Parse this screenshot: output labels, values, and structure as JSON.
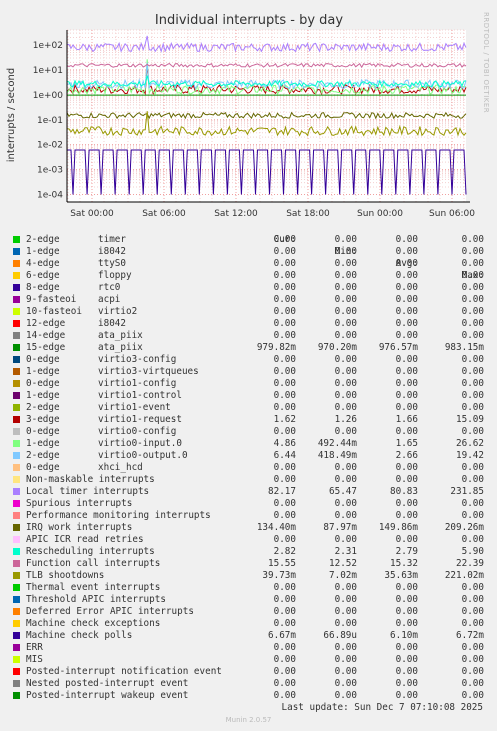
{
  "chart_data": {
    "type": "line",
    "title": "Individual interrupts - by day",
    "ylabel": "interrupts / second",
    "yscale": "log",
    "ylim": [
      5e-05,
      400
    ],
    "yticks": [
      "1e+02",
      "1e+01",
      "1e+00",
      "1e-01",
      "1e-02",
      "1e-03",
      "1e-04"
    ],
    "xticks": [
      "Sat 00:00",
      "Sat 06:00",
      "Sat 12:00",
      "Sat 18:00",
      "Sun 00:00",
      "Sun 06:00"
    ],
    "side_label": "RRDTOOL / TOBI OETIKER",
    "series": [
      {
        "label": "timer",
        "irq": "2-edge",
        "color": "#00cc00",
        "cur": "0.00",
        "min": "0.00",
        "avg": "0.00",
        "max": "0.00"
      },
      {
        "label": "i8042",
        "irq": "1-edge",
        "color": "#0066b3",
        "cur": "0.00",
        "min": "0.00",
        "avg": "0.00",
        "max": "0.00"
      },
      {
        "label": "ttyS0",
        "irq": "4-edge",
        "color": "#ff8000",
        "cur": "0.00",
        "min": "0.00",
        "avg": "0.00",
        "max": "0.00"
      },
      {
        "label": "floppy",
        "irq": "6-edge",
        "color": "#ffcc00",
        "cur": "0.00",
        "min": "0.00",
        "avg": "0.00",
        "max": "0.00"
      },
      {
        "label": "rtc0",
        "irq": "8-edge",
        "color": "#330099",
        "cur": "0.00",
        "min": "0.00",
        "avg": "0.00",
        "max": "0.00"
      },
      {
        "label": "acpi",
        "irq": "9-fasteoi",
        "color": "#990099",
        "cur": "0.00",
        "min": "0.00",
        "avg": "0.00",
        "max": "0.00"
      },
      {
        "label": "virtio2",
        "irq": "10-fasteoi",
        "color": "#ccff00",
        "cur": "0.00",
        "min": "0.00",
        "avg": "0.00",
        "max": "0.00"
      },
      {
        "label": "i8042",
        "irq": "12-edge",
        "color": "#ff0000",
        "cur": "0.00",
        "min": "0.00",
        "avg": "0.00",
        "max": "0.00"
      },
      {
        "label": "ata_piix",
        "irq": "14-edge",
        "color": "#808080",
        "cur": "0.00",
        "min": "0.00",
        "avg": "0.00",
        "max": "0.00"
      },
      {
        "label": "ata_piix",
        "irq": "15-edge",
        "color": "#008f00",
        "cur": "979.82m",
        "min": "970.20m",
        "avg": "976.57m",
        "max": "983.15m"
      },
      {
        "label": "virtio3-config",
        "irq": "0-edge",
        "color": "#00487d",
        "cur": "0.00",
        "min": "0.00",
        "avg": "0.00",
        "max": "0.00"
      },
      {
        "label": "virtio3-virtqueues",
        "irq": "1-edge",
        "color": "#b35a00",
        "cur": "0.00",
        "min": "0.00",
        "avg": "0.00",
        "max": "0.00"
      },
      {
        "label": "virtio1-config",
        "irq": "0-edge",
        "color": "#b38f00",
        "cur": "0.00",
        "min": "0.00",
        "avg": "0.00",
        "max": "0.00"
      },
      {
        "label": "virtio1-control",
        "irq": "1-edge",
        "color": "#6b006b",
        "cur": "0.00",
        "min": "0.00",
        "avg": "0.00",
        "max": "0.00"
      },
      {
        "label": "virtio1-event",
        "irq": "2-edge",
        "color": "#8fb300",
        "cur": "0.00",
        "min": "0.00",
        "avg": "0.00",
        "max": "0.00"
      },
      {
        "label": "virtio1-request",
        "irq": "3-edge",
        "color": "#b30000",
        "cur": "1.62",
        "min": "1.26",
        "avg": "1.66",
        "max": "15.09"
      },
      {
        "label": "virtio0-config",
        "irq": "0-edge",
        "color": "#bebebe",
        "cur": "0.00",
        "min": "0.00",
        "avg": "0.00",
        "max": "0.00"
      },
      {
        "label": "virtio0-input.0",
        "irq": "1-edge",
        "color": "#80ff80",
        "cur": "4.86",
        "min": "492.44m",
        "avg": "1.65",
        "max": "26.62"
      },
      {
        "label": "virtio0-output.0",
        "irq": "2-edge",
        "color": "#80c9ff",
        "cur": "6.44",
        "min": "418.49m",
        "avg": "2.66",
        "max": "19.42"
      },
      {
        "label": "xhci_hcd",
        "irq": "0-edge",
        "color": "#ffc080",
        "cur": "0.00",
        "min": "0.00",
        "avg": "0.00",
        "max": "0.00"
      },
      {
        "label": "Non-maskable interrupts",
        "irq": "",
        "color": "#ffe680",
        "cur": "0.00",
        "min": "0.00",
        "avg": "0.00",
        "max": "0.00"
      },
      {
        "label": "Local timer interrupts",
        "irq": "",
        "color": "#aa80ff",
        "cur": "82.17",
        "min": "65.47",
        "avg": "80.83",
        "max": "231.85"
      },
      {
        "label": "Spurious interrupts",
        "irq": "",
        "color": "#ee00cc",
        "cur": "0.00",
        "min": "0.00",
        "avg": "0.00",
        "max": "0.00"
      },
      {
        "label": "Performance monitoring interrupts",
        "irq": "",
        "color": "#ff8080",
        "cur": "0.00",
        "min": "0.00",
        "avg": "0.00",
        "max": "0.00"
      },
      {
        "label": "IRQ work interrupts",
        "irq": "",
        "color": "#666600",
        "cur": "134.40m",
        "min": "87.97m",
        "avg": "149.86m",
        "max": "209.26m"
      },
      {
        "label": "APIC ICR read retries",
        "irq": "",
        "color": "#ffbfff",
        "cur": "0.00",
        "min": "0.00",
        "avg": "0.00",
        "max": "0.00"
      },
      {
        "label": "Rescheduling interrupts",
        "irq": "",
        "color": "#00ffcc",
        "cur": "2.82",
        "min": "2.31",
        "avg": "2.79",
        "max": "5.90"
      },
      {
        "label": "Function call interrupts",
        "irq": "",
        "color": "#cc6699",
        "cur": "15.55",
        "min": "12.52",
        "avg": "15.32",
        "max": "22.39"
      },
      {
        "label": "TLB shootdowns",
        "irq": "",
        "color": "#999900",
        "cur": "39.73m",
        "min": "7.02m",
        "avg": "35.63m",
        "max": "221.02m"
      },
      {
        "label": "Thermal event interrupts",
        "irq": "",
        "color": "#00cc00",
        "cur": "0.00",
        "min": "0.00",
        "avg": "0.00",
        "max": "0.00"
      },
      {
        "label": "Threshold APIC interrupts",
        "irq": "",
        "color": "#0066b3",
        "cur": "0.00",
        "min": "0.00",
        "avg": "0.00",
        "max": "0.00"
      },
      {
        "label": "Deferred Error APIC interrupts",
        "irq": "",
        "color": "#ff8000",
        "cur": "0.00",
        "min": "0.00",
        "avg": "0.00",
        "max": "0.00"
      },
      {
        "label": "Machine check exceptions",
        "irq": "",
        "color": "#ffcc00",
        "cur": "0.00",
        "min": "0.00",
        "avg": "0.00",
        "max": "0.00"
      },
      {
        "label": "Machine check polls",
        "irq": "",
        "color": "#330099",
        "cur": "6.67m",
        "min": "66.89u",
        "avg": "6.10m",
        "max": "6.72m"
      },
      {
        "label": "ERR",
        "irq": "",
        "color": "#990099",
        "cur": "0.00",
        "min": "0.00",
        "avg": "0.00",
        "max": "0.00"
      },
      {
        "label": "MIS",
        "irq": "",
        "color": "#ccff00",
        "cur": "0.00",
        "min": "0.00",
        "avg": "0.00",
        "max": "0.00"
      },
      {
        "label": "Posted-interrupt notification event",
        "irq": "",
        "color": "#ff0000",
        "cur": "0.00",
        "min": "0.00",
        "avg": "0.00",
        "max": "0.00"
      },
      {
        "label": "Nested posted-interrupt event",
        "irq": "",
        "color": "#808080",
        "cur": "0.00",
        "min": "0.00",
        "avg": "0.00",
        "max": "0.00"
      },
      {
        "label": "Posted-interrupt wakeup event",
        "irq": "",
        "color": "#008f00",
        "cur": "0.00",
        "min": "0.00",
        "avg": "0.00",
        "max": "0.00"
      }
    ]
  },
  "legend_headers": {
    "cur": "Cur:",
    "min": "Min:",
    "avg": "Avg:",
    "max": "Max:"
  },
  "last_update": "Last update: Sun Dec  7 07:10:08 2025",
  "footer": "Munin 2.0.57"
}
